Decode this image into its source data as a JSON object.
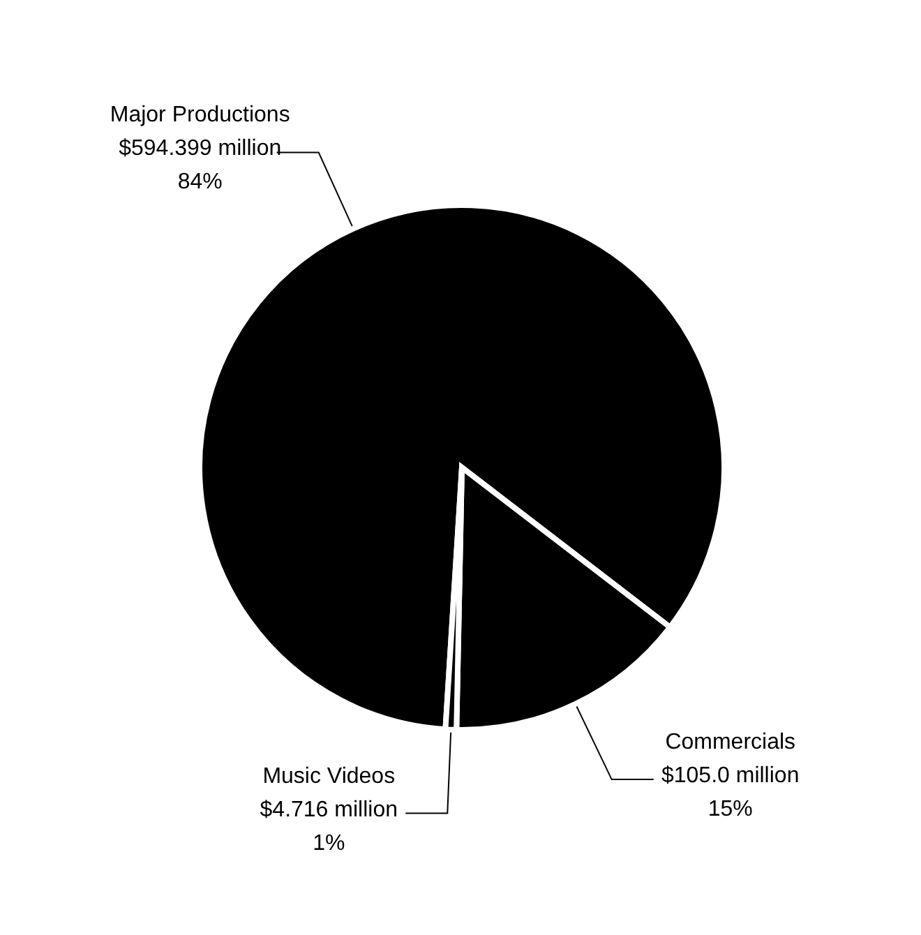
{
  "chart_data": {
    "type": "pie",
    "categories": [
      "Major Productions",
      "Commercials",
      "Music Videos"
    ],
    "values": [
      594.399,
      105.0,
      4.716
    ],
    "colors": [
      "#000000",
      "#000000",
      "#000000"
    ],
    "value_labels": [
      "$594.399 million",
      "$105.0 million",
      "$4.716 million"
    ],
    "annotations": [
      "84%",
      "15%",
      "1%"
    ],
    "legend": false
  }
}
